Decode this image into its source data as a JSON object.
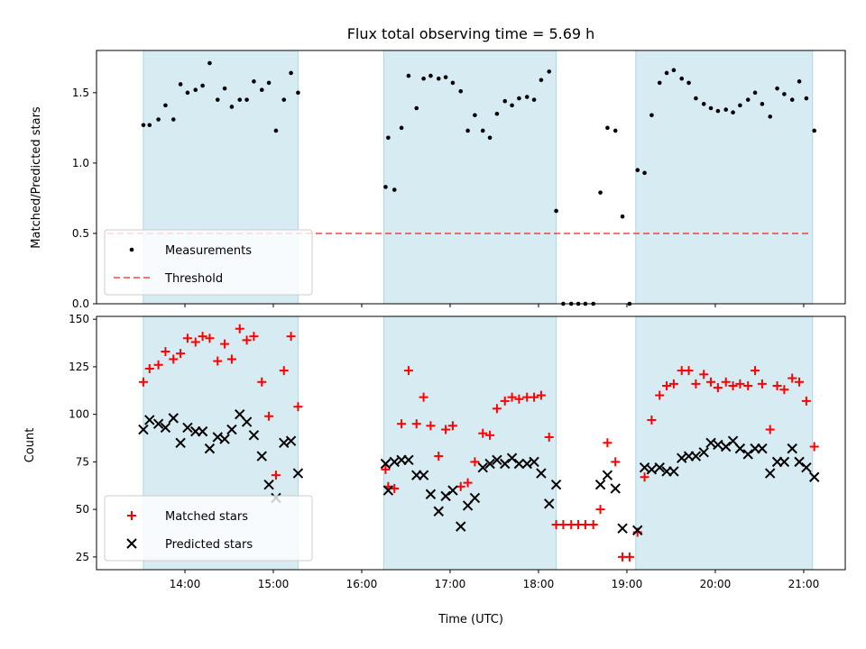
{
  "chart_data": {
    "type": "scatter",
    "title": "Flux total observing time = 5.69 h",
    "xlabel": "Time (UTC)",
    "xlim": [
      13.0,
      21.47
    ],
    "xticks": [
      {
        "value": 14,
        "label": "14:00"
      },
      {
        "value": 15,
        "label": "15:00"
      },
      {
        "value": 16,
        "label": "16:00"
      },
      {
        "value": 17,
        "label": "17:00"
      },
      {
        "value": 18,
        "label": "18:00"
      },
      {
        "value": 19,
        "label": "19:00"
      },
      {
        "value": 20,
        "label": "20:00"
      },
      {
        "value": 21,
        "label": "21:00"
      }
    ],
    "observing_windows": [
      [
        13.53,
        15.28
      ],
      [
        16.25,
        18.2
      ],
      [
        19.1,
        21.1
      ]
    ],
    "shade_color": "#add8e6",
    "top": {
      "ylabel": "Matched/Predicted stars",
      "ylim": [
        0,
        1.8
      ],
      "yticks": [
        "0.0",
        "0.5",
        "1.0",
        "1.5"
      ],
      "threshold": 0.5,
      "legend": {
        "position": "lower left",
        "entries": [
          "Measurements",
          "Threshold"
        ]
      },
      "series": [
        {
          "name": "Measurements",
          "color": "#000000",
          "points": [
            [
              13.53,
              1.27
            ],
            [
              13.6,
              1.27
            ],
            [
              13.7,
              1.31
            ],
            [
              13.78,
              1.41
            ],
            [
              13.87,
              1.31
            ],
            [
              13.95,
              1.56
            ],
            [
              14.03,
              1.5
            ],
            [
              14.12,
              1.52
            ],
            [
              14.2,
              1.55
            ],
            [
              14.28,
              1.71
            ],
            [
              14.37,
              1.45
            ],
            [
              14.45,
              1.53
            ],
            [
              14.53,
              1.4
            ],
            [
              14.62,
              1.45
            ],
            [
              14.7,
              1.45
            ],
            [
              14.78,
              1.58
            ],
            [
              14.87,
              1.52
            ],
            [
              14.95,
              1.57
            ],
            [
              15.03,
              1.23
            ],
            [
              15.12,
              1.45
            ],
            [
              15.2,
              1.64
            ],
            [
              15.28,
              1.5
            ],
            [
              16.27,
              0.83
            ],
            [
              16.3,
              1.18
            ],
            [
              16.37,
              0.81
            ],
            [
              16.45,
              1.25
            ],
            [
              16.53,
              1.62
            ],
            [
              16.62,
              1.39
            ],
            [
              16.7,
              1.6
            ],
            [
              16.78,
              1.62
            ],
            [
              16.87,
              1.6
            ],
            [
              16.95,
              1.61
            ],
            [
              17.03,
              1.57
            ],
            [
              17.12,
              1.51
            ],
            [
              17.2,
              1.23
            ],
            [
              17.28,
              1.34
            ],
            [
              17.37,
              1.23
            ],
            [
              17.45,
              1.18
            ],
            [
              17.53,
              1.35
            ],
            [
              17.62,
              1.44
            ],
            [
              17.7,
              1.41
            ],
            [
              17.78,
              1.46
            ],
            [
              17.87,
              1.47
            ],
            [
              17.95,
              1.45
            ],
            [
              18.03,
              1.59
            ],
            [
              18.12,
              1.65
            ],
            [
              18.2,
              0.66
            ],
            [
              18.28,
              0.0
            ],
            [
              18.37,
              0.0
            ],
            [
              18.45,
              0.0
            ],
            [
              18.53,
              0.0
            ],
            [
              18.62,
              0.0
            ],
            [
              18.7,
              0.79
            ],
            [
              18.78,
              1.25
            ],
            [
              18.87,
              1.23
            ],
            [
              18.95,
              0.62
            ],
            [
              19.03,
              0.0
            ],
            [
              19.12,
              0.95
            ],
            [
              19.2,
              0.93
            ],
            [
              19.28,
              1.34
            ],
            [
              19.37,
              1.57
            ],
            [
              19.45,
              1.64
            ],
            [
              19.53,
              1.66
            ],
            [
              19.62,
              1.6
            ],
            [
              19.7,
              1.57
            ],
            [
              19.78,
              1.46
            ],
            [
              19.87,
              1.42
            ],
            [
              19.95,
              1.39
            ],
            [
              20.03,
              1.37
            ],
            [
              20.12,
              1.38
            ],
            [
              20.2,
              1.36
            ],
            [
              20.28,
              1.41
            ],
            [
              20.37,
              1.45
            ],
            [
              20.45,
              1.5
            ],
            [
              20.53,
              1.42
            ],
            [
              20.62,
              1.33
            ],
            [
              20.7,
              1.53
            ],
            [
              20.78,
              1.49
            ],
            [
              20.87,
              1.45
            ],
            [
              20.95,
              1.58
            ],
            [
              21.03,
              1.46
            ],
            [
              21.12,
              1.23
            ]
          ]
        }
      ]
    },
    "bottom": {
      "ylabel": "Count",
      "ylim": [
        18.3,
        151.5
      ],
      "yticks": [
        "25",
        "50",
        "75",
        "100",
        "125",
        "150"
      ],
      "legend": {
        "position": "lower left",
        "entries": [
          "Matched stars",
          "Predicted stars"
        ]
      },
      "series": [
        {
          "name": "Matched stars",
          "color": "#ff0000",
          "marker": "plus",
          "points": [
            [
              13.53,
              117
            ],
            [
              13.6,
              124
            ],
            [
              13.7,
              126
            ],
            [
              13.78,
              133
            ],
            [
              13.87,
              129
            ],
            [
              13.95,
              132
            ],
            [
              14.03,
              140
            ],
            [
              14.12,
              138
            ],
            [
              14.2,
              141
            ],
            [
              14.28,
              140
            ],
            [
              14.37,
              128
            ],
            [
              14.45,
              137
            ],
            [
              14.53,
              129
            ],
            [
              14.62,
              145
            ],
            [
              14.7,
              139
            ],
            [
              14.78,
              141
            ],
            [
              14.87,
              117
            ],
            [
              14.95,
              99
            ],
            [
              15.03,
              68
            ],
            [
              15.12,
              123
            ],
            [
              15.2,
              141
            ],
            [
              15.28,
              104
            ],
            [
              16.27,
              71
            ],
            [
              16.3,
              62
            ],
            [
              16.37,
              61
            ],
            [
              16.45,
              95
            ],
            [
              16.53,
              123
            ],
            [
              16.62,
              95
            ],
            [
              16.7,
              109
            ],
            [
              16.78,
              94
            ],
            [
              16.87,
              78
            ],
            [
              16.95,
              92
            ],
            [
              17.03,
              94
            ],
            [
              17.12,
              62
            ],
            [
              17.2,
              64
            ],
            [
              17.28,
              75
            ],
            [
              17.37,
              90
            ],
            [
              17.45,
              89
            ],
            [
              17.53,
              103
            ],
            [
              17.62,
              107
            ],
            [
              17.7,
              109
            ],
            [
              17.78,
              108
            ],
            [
              17.87,
              109
            ],
            [
              17.95,
              109
            ],
            [
              18.03,
              110
            ],
            [
              18.12,
              88
            ],
            [
              18.2,
              42
            ],
            [
              18.28,
              42
            ],
            [
              18.37,
              42
            ],
            [
              18.45,
              42
            ],
            [
              18.53,
              42
            ],
            [
              18.62,
              42
            ],
            [
              18.7,
              50
            ],
            [
              18.78,
              85
            ],
            [
              18.87,
              75
            ],
            [
              18.95,
              25
            ],
            [
              19.03,
              25
            ],
            [
              19.12,
              38
            ],
            [
              19.2,
              67
            ],
            [
              19.28,
              97
            ],
            [
              19.37,
              110
            ],
            [
              19.45,
              115
            ],
            [
              19.53,
              116
            ],
            [
              19.62,
              123
            ],
            [
              19.7,
              123
            ],
            [
              19.78,
              116
            ],
            [
              19.87,
              121
            ],
            [
              19.95,
              117
            ],
            [
              20.03,
              114
            ],
            [
              20.12,
              117
            ],
            [
              20.2,
              115
            ],
            [
              20.28,
              116
            ],
            [
              20.37,
              115
            ],
            [
              20.45,
              123
            ],
            [
              20.53,
              116
            ],
            [
              20.62,
              92
            ],
            [
              20.7,
              115
            ],
            [
              20.78,
              113
            ],
            [
              20.87,
              119
            ],
            [
              20.95,
              117
            ],
            [
              21.03,
              107
            ],
            [
              21.12,
              83
            ]
          ]
        },
        {
          "name": "Predicted stars",
          "color": "#000000",
          "marker": "x",
          "points": [
            [
              13.53,
              92
            ],
            [
              13.6,
              97
            ],
            [
              13.7,
              95
            ],
            [
              13.78,
              93
            ],
            [
              13.87,
              98
            ],
            [
              13.95,
              85
            ],
            [
              14.03,
              93
            ],
            [
              14.12,
              91
            ],
            [
              14.2,
              91
            ],
            [
              14.28,
              82
            ],
            [
              14.37,
              88
            ],
            [
              14.45,
              87
            ],
            [
              14.53,
              92
            ],
            [
              14.62,
              100
            ],
            [
              14.7,
              96
            ],
            [
              14.78,
              89
            ],
            [
              14.87,
              78
            ],
            [
              14.95,
              63
            ],
            [
              15.03,
              56
            ],
            [
              15.12,
              85
            ],
            [
              15.2,
              86
            ],
            [
              15.28,
              69
            ],
            [
              16.27,
              74
            ],
            [
              16.3,
              60
            ],
            [
              16.37,
              75
            ],
            [
              16.45,
              76
            ],
            [
              16.53,
              76
            ],
            [
              16.62,
              68
            ],
            [
              16.7,
              68
            ],
            [
              16.78,
              58
            ],
            [
              16.87,
              49
            ],
            [
              16.95,
              57
            ],
            [
              17.03,
              60
            ],
            [
              17.12,
              41
            ],
            [
              17.2,
              52
            ],
            [
              17.28,
              56
            ],
            [
              17.37,
              72
            ],
            [
              17.45,
              74
            ],
            [
              17.53,
              76
            ],
            [
              17.62,
              74
            ],
            [
              17.7,
              77
            ],
            [
              17.78,
              74
            ],
            [
              17.87,
              74
            ],
            [
              17.95,
              75
            ],
            [
              18.03,
              69
            ],
            [
              18.12,
              53
            ],
            [
              18.2,
              63
            ],
            [
              18.7,
              63
            ],
            [
              18.78,
              68
            ],
            [
              18.87,
              61
            ],
            [
              18.95,
              40
            ],
            [
              19.12,
              39
            ],
            [
              19.2,
              72
            ],
            [
              19.28,
              71
            ],
            [
              19.37,
              72
            ],
            [
              19.45,
              70
            ],
            [
              19.53,
              70
            ],
            [
              19.62,
              77
            ],
            [
              19.7,
              78
            ],
            [
              19.78,
              78
            ],
            [
              19.87,
              80
            ],
            [
              19.95,
              85
            ],
            [
              20.03,
              84
            ],
            [
              20.12,
              83
            ],
            [
              20.2,
              86
            ],
            [
              20.28,
              82
            ],
            [
              20.37,
              79
            ],
            [
              20.45,
              82
            ],
            [
              20.53,
              82
            ],
            [
              20.62,
              69
            ],
            [
              20.7,
              75
            ],
            [
              20.78,
              75
            ],
            [
              20.87,
              82
            ],
            [
              20.95,
              75
            ],
            [
              21.03,
              72
            ],
            [
              21.12,
              67
            ]
          ]
        }
      ]
    },
    "threshold_color": "#ff0000"
  }
}
